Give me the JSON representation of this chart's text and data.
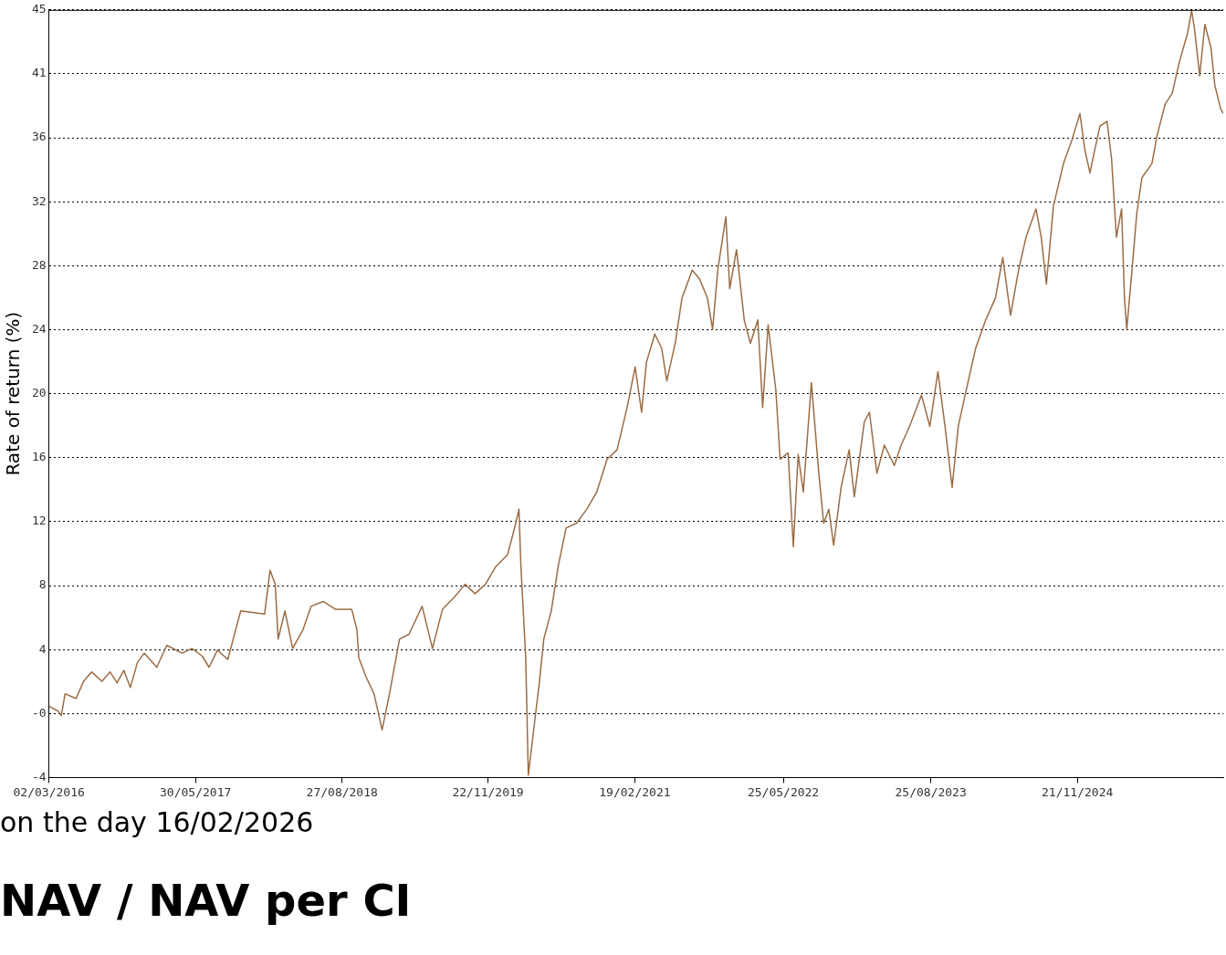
{
  "chart_data": {
    "type": "line",
    "title": "NAV / NAV per CI",
    "subtitle": "on the day 16/02/2026",
    "ylabel": "Rate of return (%)",
    "xlim": [
      "2016-03-02",
      "2026-02-16"
    ],
    "xticks": [
      {
        "value": "2016-03-02",
        "label": "02/03/2016"
      },
      {
        "value": "2017-05-30",
        "label": "30/05/2017"
      },
      {
        "value": "2018-08-27",
        "label": "27/08/2018"
      },
      {
        "value": "2019-11-22",
        "label": "22/11/2019"
      },
      {
        "value": "2021-02-19",
        "label": "19/02/2021"
      },
      {
        "value": "2022-05-25",
        "label": "25/05/2022"
      },
      {
        "value": "2023-08-25",
        "label": "25/08/2023"
      },
      {
        "value": "2024-11-21",
        "label": "21/11/2024"
      }
    ],
    "ylim": [
      -4.45,
      44.63
    ],
    "yticks": [
      {
        "value": -4.45,
        "label": "-4"
      },
      {
        "value": -0.36,
        "label": "-0"
      },
      {
        "value": 3.73,
        "label": "4"
      },
      {
        "value": 7.82,
        "label": "8"
      },
      {
        "value": 11.91,
        "label": "12"
      },
      16,
      {
        "value": 20.09,
        "label": "20"
      },
      {
        "value": 24.18,
        "label": "24"
      },
      {
        "value": 28.27,
        "label": "28"
      },
      {
        "value": 32.36,
        "label": "32"
      },
      {
        "value": 36.45,
        "label": "36"
      },
      {
        "value": 40.54,
        "label": "41"
      },
      {
        "value": 44.63,
        "label": "45"
      }
    ],
    "grid": "y",
    "legend": false,
    "marker": "none",
    "line_style": "solid",
    "x": [
      "2016-03-02",
      "2016-03-30",
      "2016-04-09",
      "2016-04-21",
      "2016-05-25",
      "2016-06-17",
      "2016-07-12",
      "2016-08-13",
      "2016-09-07",
      "2016-09-29",
      "2016-10-20",
      "2016-11-09",
      "2016-12-01",
      "2016-12-22",
      "2017-01-30",
      "2017-03-02",
      "2017-04-18",
      "2017-05-19",
      "2017-06-20",
      "2017-07-11",
      "2017-08-06",
      "2017-09-07",
      "2017-10-17",
      "2017-12-30",
      "2018-01-16",
      "2018-02-01",
      "2018-02-10",
      "2018-03-03",
      "2018-03-27",
      "2018-04-28",
      "2018-05-23",
      "2018-06-30",
      "2018-08-07",
      "2018-09-26",
      "2018-10-12",
      "2018-10-18",
      "2018-11-09",
      "2018-12-04",
      "2018-12-29",
      "2019-01-21",
      "2019-02-21",
      "2019-03-22",
      "2019-05-02",
      "2019-06-03",
      "2019-07-04",
      "2019-08-11",
      "2019-09-12",
      "2019-10-13",
      "2019-11-14",
      "2019-12-15",
      "2020-01-22",
      "2020-02-16",
      "2020-02-26",
      "2020-03-03",
      "2020-03-18",
      "2020-03-26",
      "2020-04-18",
      "2020-04-28",
      "2020-05-13",
      "2020-06-05",
      "2020-06-27",
      "2020-07-21",
      "2020-08-22",
      "2020-09-23",
      "2020-10-24",
      "2020-11-25",
      "2020-12-26",
      "2021-01-26",
      "2021-02-20",
      "2021-03-12",
      "2021-03-27",
      "2021-04-22",
      "2021-05-13",
      "2021-05-29",
      "2021-06-24",
      "2021-07-15",
      "2021-08-16",
      "2021-09-08",
      "2021-10-02",
      "2021-10-18",
      "2021-11-03",
      "2021-11-28",
      "2021-12-10",
      "2021-12-31",
      "2022-01-24",
      "2022-02-12",
      "2022-03-07",
      "2022-03-22",
      "2022-04-08",
      "2022-05-02",
      "2022-05-15",
      "2022-06-09",
      "2022-06-25",
      "2022-07-10",
      "2022-07-26",
      "2022-08-20",
      "2022-09-12",
      "2022-09-27",
      "2022-10-13",
      "2022-10-28",
      "2022-11-20",
      "2022-12-15",
      "2022-12-31",
      "2023-01-31",
      "2023-02-16",
      "2023-03-11",
      "2023-04-03",
      "2023-05-04",
      "2023-05-25",
      "2023-06-20",
      "2023-07-27",
      "2023-08-22",
      "2023-09-16",
      "2023-10-08",
      "2023-10-30",
      "2023-11-18",
      "2023-12-19",
      "2024-01-11",
      "2024-02-11",
      "2024-03-12",
      "2024-04-04",
      "2024-04-28",
      "2024-05-23",
      "2024-06-15",
      "2024-07-16",
      "2024-08-01",
      "2024-08-17",
      "2024-09-08",
      "2024-10-09",
      "2024-11-04",
      "2024-11-29",
      "2024-12-14",
      "2024-12-30",
      "2025-01-11",
      "2025-01-30",
      "2025-02-21",
      "2025-03-07",
      "2025-03-22",
      "2025-04-07",
      "2025-04-16",
      "2025-04-23",
      "2025-05-08",
      "2025-05-24",
      "2025-06-09",
      "2025-07-10",
      "2025-07-26",
      "2025-08-20",
      "2025-09-11",
      "2025-10-03",
      "2025-10-28",
      "2025-11-10",
      "2025-11-19",
      "2025-12-05",
      "2025-12-21",
      "2026-01-09",
      "2026-01-21",
      "2026-02-08",
      "2026-02-16"
    ],
    "series": [
      {
        "color": "#9b6d45",
        "values": [
          0.1,
          -0.2,
          -0.5,
          0.9,
          0.6,
          1.7,
          2.3,
          1.7,
          2.3,
          1.6,
          2.4,
          1.3,
          2.9,
          3.5,
          2.6,
          4.0,
          3.5,
          3.8,
          3.3,
          2.6,
          3.7,
          3.1,
          6.2,
          6.0,
          8.8,
          7.9,
          4.4,
          6.2,
          3.8,
          5.0,
          6.5,
          6.8,
          6.3,
          6.3,
          5.0,
          3.2,
          2.0,
          0.9,
          -1.4,
          0.9,
          4.4,
          4.7,
          6.5,
          3.8,
          6.3,
          7.1,
          7.9,
          7.3,
          7.9,
          9.0,
          9.8,
          11.8,
          12.7,
          9.1,
          3.2,
          -4.3,
          -0.3,
          1.4,
          4.4,
          6.2,
          9.1,
          11.5,
          11.8,
          12.7,
          13.8,
          15.9,
          16.5,
          19.2,
          21.8,
          18.9,
          22.1,
          23.9,
          23.0,
          20.9,
          23.3,
          26.2,
          28.0,
          27.4,
          26.2,
          24.2,
          28.0,
          31.4,
          26.8,
          29.3,
          24.8,
          23.3,
          24.8,
          19.2,
          24.5,
          20.3,
          15.9,
          16.3,
          10.3,
          16.2,
          13.8,
          20.8,
          15.0,
          11.8,
          12.7,
          10.4,
          14.1,
          16.5,
          13.5,
          18.3,
          18.9,
          15.0,
          16.8,
          15.5,
          16.8,
          18.0,
          20.0,
          18.0,
          21.5,
          18.0,
          14.1,
          18.0,
          20.9,
          23.0,
          24.8,
          26.2,
          28.8,
          25.1,
          28.0,
          30.1,
          31.9,
          30.1,
          27.1,
          32.1,
          34.8,
          36.3,
          38.0,
          35.7,
          34.2,
          35.4,
          37.2,
          37.5,
          35.1,
          30.1,
          31.9,
          26.2,
          24.2,
          27.7,
          31.6,
          33.9,
          34.8,
          36.6,
          38.6,
          39.3,
          41.3,
          43.1,
          44.6,
          43.4,
          40.4,
          43.7,
          42.2,
          39.8,
          38.3,
          38.0
        ]
      }
    ]
  }
}
